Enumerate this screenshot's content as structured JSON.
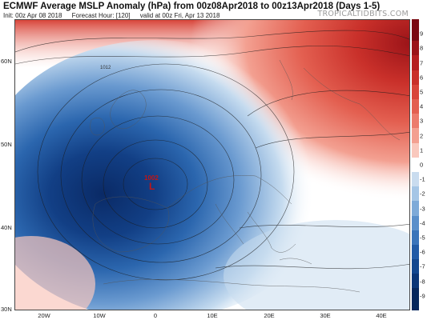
{
  "header": {
    "title": "ECMWF Average MSLP Anomaly (hPa) from 00z08Apr2018 to 00z13Apr2018 (Days 1-5)",
    "init": "Init: 00z Apr 08 2018",
    "forecast_hour": "Forecast Hour: [120]",
    "valid": "valid at 00z Fri, Apr 13 2018"
  },
  "watermark": "TROPICALTIDBITS.COM",
  "map": {
    "latitude_labels": [
      "60N",
      "50N",
      "40N",
      "30N"
    ],
    "longitude_labels": [
      "20W",
      "10W",
      "0",
      "10E",
      "20E",
      "30E",
      "40E"
    ],
    "low_center": {
      "pressure": "1002",
      "symbol": "L"
    },
    "contour_label": "1012"
  },
  "colorbar": {
    "labels": [
      "9",
      "8",
      "7",
      "6",
      "5",
      "4",
      "3",
      "2",
      "1",
      "0",
      "-1",
      "-2",
      "-3",
      "-4",
      "-5",
      "-6",
      "-7",
      "-8",
      "-9"
    ],
    "colors": [
      "#7a0a12",
      "#9a1318",
      "#b51e20",
      "#c9302a",
      "#d8453a",
      "#e35f50",
      "#ec7b6c",
      "#f3a091",
      "#f9c8bd",
      "#ffffff",
      "#c9dcef",
      "#a5c6e6",
      "#7eaad8",
      "#5a8fca",
      "#3a74ba",
      "#225ba6",
      "#13478f",
      "#0b3677",
      "#06275c"
    ]
  }
}
